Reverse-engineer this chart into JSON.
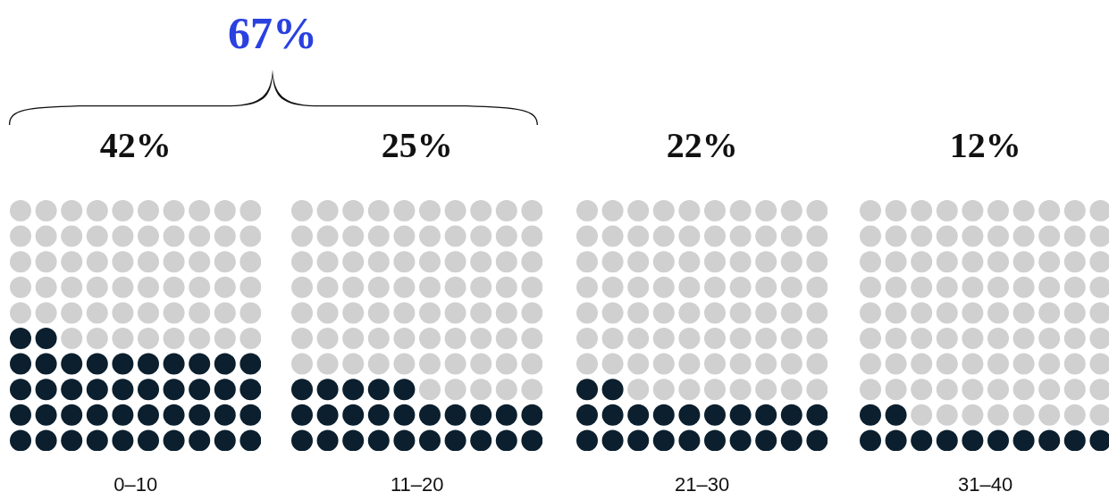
{
  "chart_data": {
    "type": "other",
    "categories": [
      "0–10",
      "11–20",
      "21–30",
      "31–40"
    ],
    "values": [
      42,
      25,
      22,
      12
    ],
    "color": "#0b1f2e",
    "value_labels": [
      "42%",
      "25%",
      "22%",
      "12%"
    ],
    "annotations": [
      "67%"
    ]
  }
}
